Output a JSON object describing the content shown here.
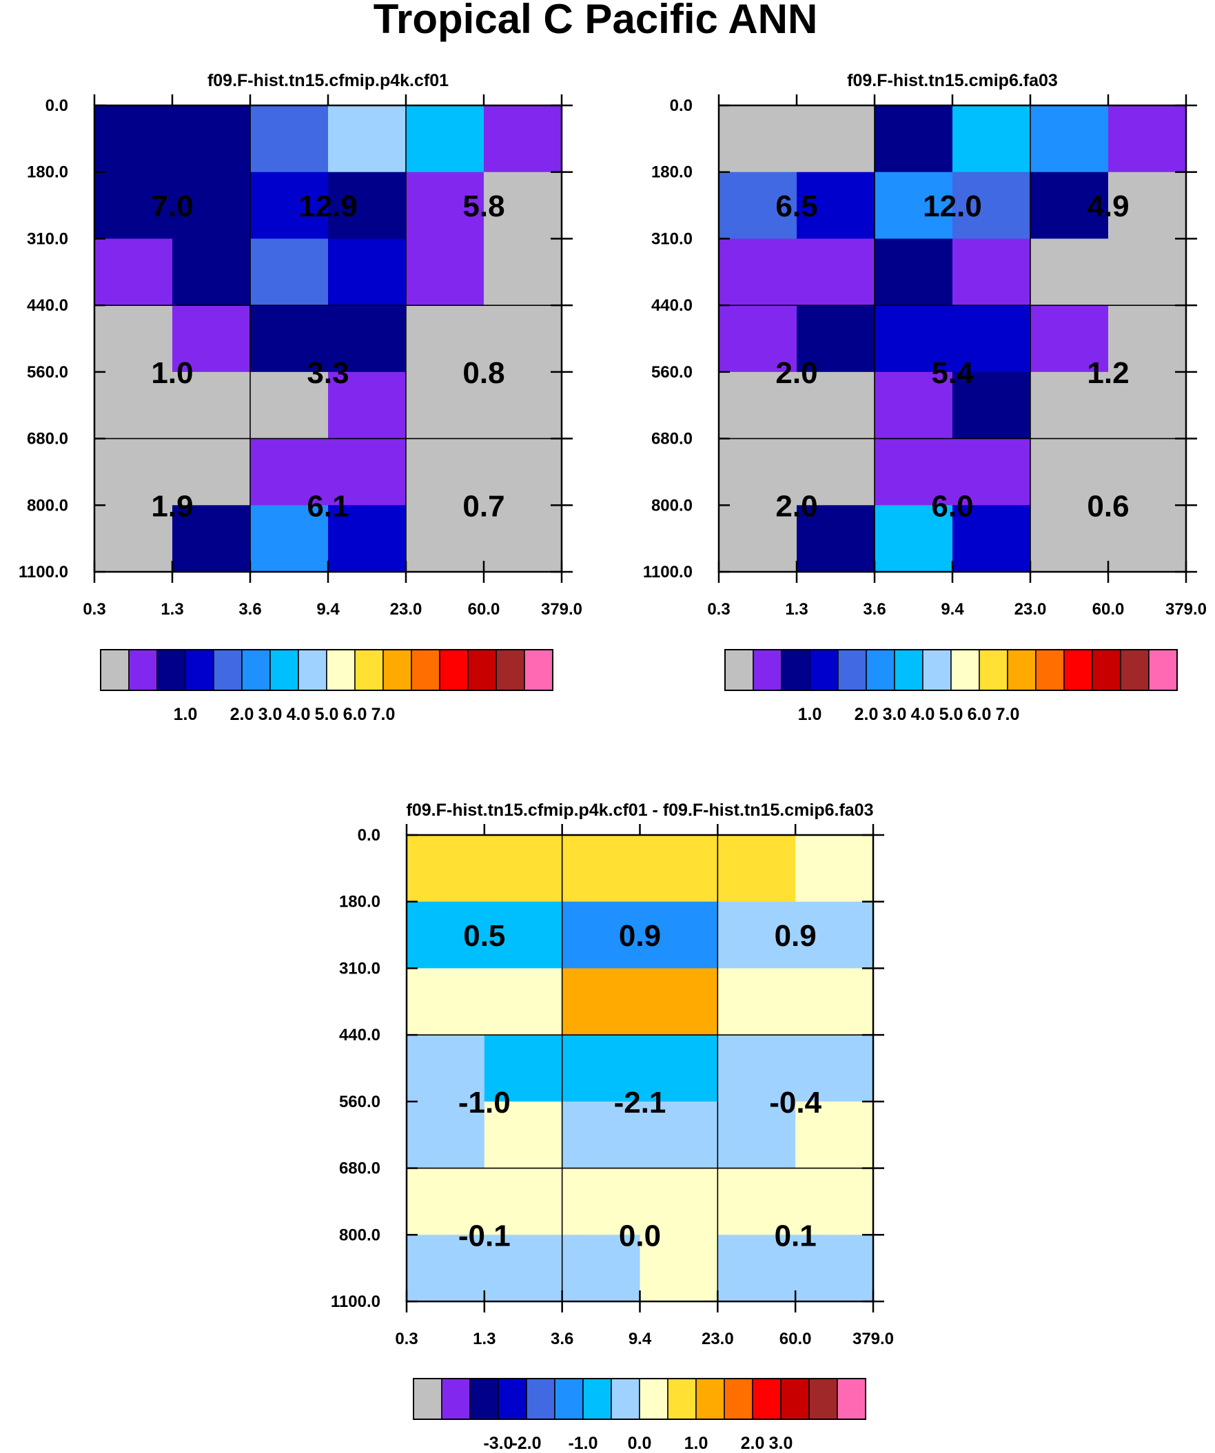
{
  "chart_data": {
    "type": "heatmap",
    "title": "Tropical C Pacific ANN",
    "x_tick_labels": [
      "0.3",
      "1.3",
      "3.6",
      "9.4",
      "23.0",
      "60.0",
      "379.0"
    ],
    "y_tick_labels": [
      "0.0",
      "180.0",
      "310.0",
      "440.0",
      "560.0",
      "680.0",
      "800.0",
      "1100.0"
    ],
    "levels": [
      0.2,
      0.5,
      0.8,
      1.0,
      1.5,
      2.0,
      3.0,
      4.0,
      5.0,
      6.0,
      7.0,
      8.0,
      9.0,
      10.0,
      15.0
    ],
    "diff_levels": [
      -5.0,
      -4.0,
      -3.0,
      -2.0,
      -1.5,
      -1.0,
      -0.5,
      0.0,
      0.5,
      1.0,
      1.5,
      2.0,
      3.0,
      4.0,
      5.0
    ],
    "colorbar_colors": [
      "#c0c0c0",
      "#8228ee",
      "#00008b",
      "#0000cd",
      "#4169e1",
      "#1e90ff",
      "#00bfff",
      "#a0d2ff",
      "#ffffc8",
      "#ffe033",
      "#ffaa00",
      "#ff6e00",
      "#ff0000",
      "#c80000",
      "#a02828",
      "#ff69b4"
    ],
    "panels": [
      {
        "title": "f09.F-hist.tn15.cfmip.p4k.cf01",
        "colorbar_labels": [
          "1.0",
          "2.0",
          "3.0",
          "4.0",
          "5.0",
          "6.0",
          "7.0"
        ],
        "colorbar_tick_index": [
          3,
          5,
          6,
          7,
          8,
          9,
          10
        ],
        "cells": [
          [
            2,
            2,
            4,
            7,
            6,
            1
          ],
          [
            2,
            2,
            3,
            2,
            1,
            0
          ],
          [
            1,
            2,
            4,
            3,
            1,
            0
          ],
          [
            0,
            1,
            2,
            2,
            0,
            0
          ],
          [
            0,
            0,
            0,
            1,
            0,
            0
          ],
          [
            0,
            0,
            1,
            1,
            0,
            0
          ],
          [
            0,
            2,
            5,
            3,
            0,
            0
          ]
        ],
        "block_values": [
          [
            "7.0",
            "12.9",
            "5.8"
          ],
          [
            "1.0",
            "3.3",
            "0.8"
          ],
          [
            "1.9",
            "6.1",
            "0.7"
          ]
        ]
      },
      {
        "title": "f09.F-hist.tn15.cmip6.fa03",
        "colorbar_labels": [
          "1.0",
          "2.0",
          "3.0",
          "4.0",
          "5.0",
          "6.0",
          "7.0"
        ],
        "colorbar_tick_index": [
          3,
          5,
          6,
          7,
          8,
          9,
          10
        ],
        "cells": [
          [
            0,
            0,
            2,
            6,
            5,
            1
          ],
          [
            4,
            3,
            5,
            4,
            2,
            0
          ],
          [
            1,
            1,
            2,
            1,
            0,
            0
          ],
          [
            1,
            2,
            3,
            3,
            1,
            0
          ],
          [
            0,
            0,
            1,
            2,
            0,
            0
          ],
          [
            0,
            0,
            1,
            1,
            0,
            0
          ],
          [
            0,
            2,
            6,
            3,
            0,
            0
          ]
        ],
        "block_values": [
          [
            "6.5",
            "12.0",
            "4.9"
          ],
          [
            "2.0",
            "5.4",
            "1.2"
          ],
          [
            "2.0",
            "6.0",
            "0.6"
          ]
        ]
      },
      {
        "title": "f09.F-hist.tn15.cfmip.p4k.cf01 - f09.F-hist.tn15.cmip6.fa03",
        "colorbar_labels": [
          "-3.0",
          "-2.0",
          "-1.0",
          "0.0",
          "1.0",
          "2.0",
          "3.0"
        ],
        "colorbar_tick_index": [
          3,
          4,
          6,
          8,
          10,
          12,
          13
        ],
        "cells": [
          [
            9,
            9,
            9,
            9,
            9,
            8
          ],
          [
            6,
            6,
            5,
            5,
            7,
            7
          ],
          [
            8,
            8,
            10,
            10,
            8,
            8
          ],
          [
            7,
            6,
            6,
            6,
            7,
            7
          ],
          [
            7,
            8,
            7,
            7,
            7,
            8
          ],
          [
            8,
            8,
            8,
            8,
            8,
            8
          ],
          [
            7,
            7,
            7,
            8,
            7,
            7
          ]
        ],
        "block_values": [
          [
            "0.5",
            "0.9",
            "0.9"
          ],
          [
            "-1.0",
            "-2.1",
            "-0.4"
          ],
          [
            "-0.1",
            "0.0",
            "0.1"
          ]
        ]
      }
    ]
  }
}
